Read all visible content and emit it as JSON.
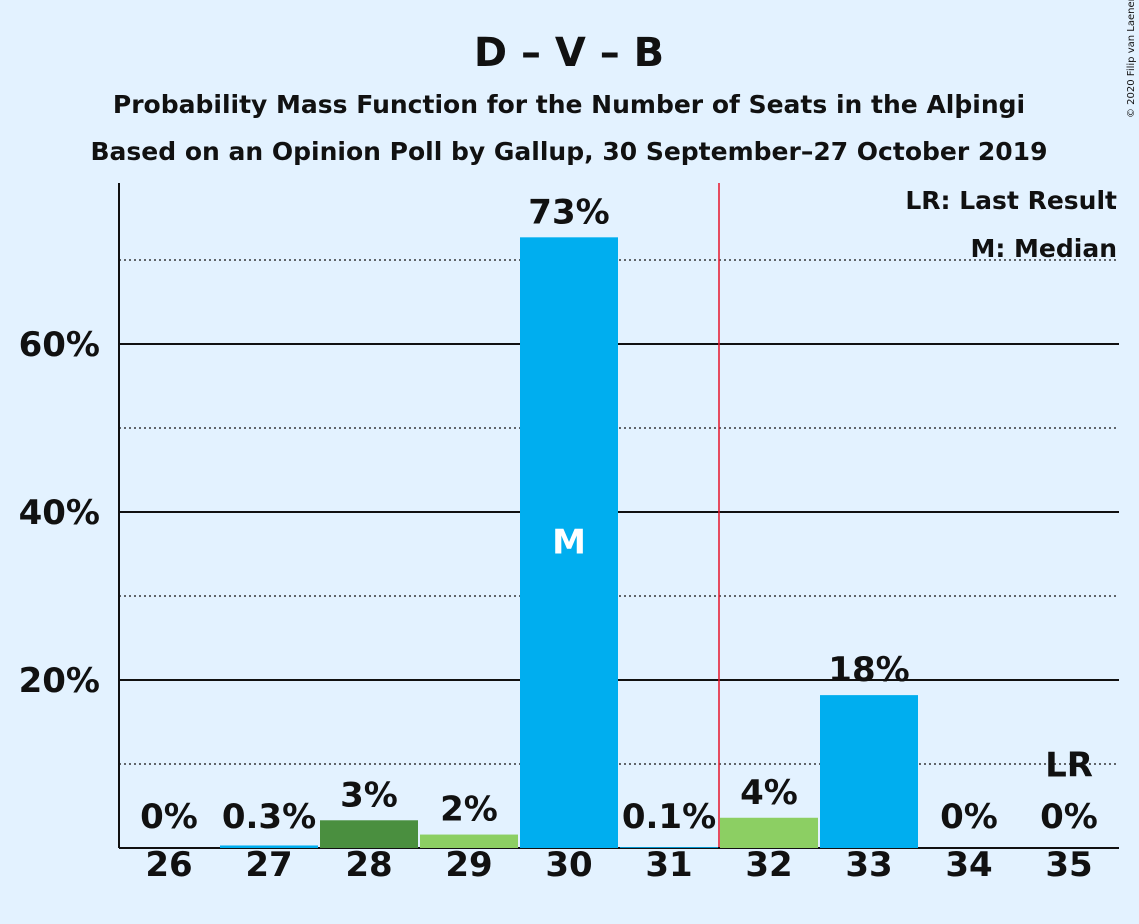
{
  "title": "D – V – B",
  "subtitle1": "Probability Mass Function for the Number of Seats in the Alþingi",
  "subtitle2": "Based on an Opinion Poll by Gallup, 30 September–27 October 2019",
  "copyright": "© 2020 Filip van Laenen",
  "legend": {
    "lr": "LR: Last Result",
    "median": "M: Median"
  },
  "colors": {
    "background": "#e3f2ff",
    "dark_green": "#4a8f3f",
    "light_green": "#8ccf63",
    "blue": "#00aeef",
    "last_result_line": "#e8152b"
  },
  "chart_data": {
    "type": "bar",
    "categories": [
      "26",
      "27",
      "28",
      "29",
      "30",
      "31",
      "32",
      "33",
      "34",
      "35"
    ],
    "values": [
      0,
      0.3,
      3.3,
      1.6,
      72.7,
      0.1,
      3.6,
      18.2,
      0,
      0
    ],
    "data_labels": [
      "0%",
      "0.3%",
      "3%",
      "2%",
      "73%",
      "0.1%",
      "4%",
      "18%",
      "0%",
      "0%"
    ],
    "bar_colors": [
      "#00aeef",
      "#00aeef",
      "#4a8f3f",
      "#8ccf63",
      "#00aeef",
      "#00aeef",
      "#8ccf63",
      "#00aeef",
      "#00aeef",
      "#00aeef"
    ],
    "ylim": [
      0,
      79
    ],
    "y_ticks_major": [
      20,
      40,
      60
    ],
    "y_tick_labels": [
      "20%",
      "40%",
      "60%"
    ],
    "y_ticks_minor": [
      10,
      30,
      50,
      70
    ],
    "median_category": "30",
    "median_marker": "M",
    "last_result_category": "35",
    "last_result_marker": "LR",
    "majority_line_between": [
      "31",
      "32"
    ],
    "grid": true
  }
}
